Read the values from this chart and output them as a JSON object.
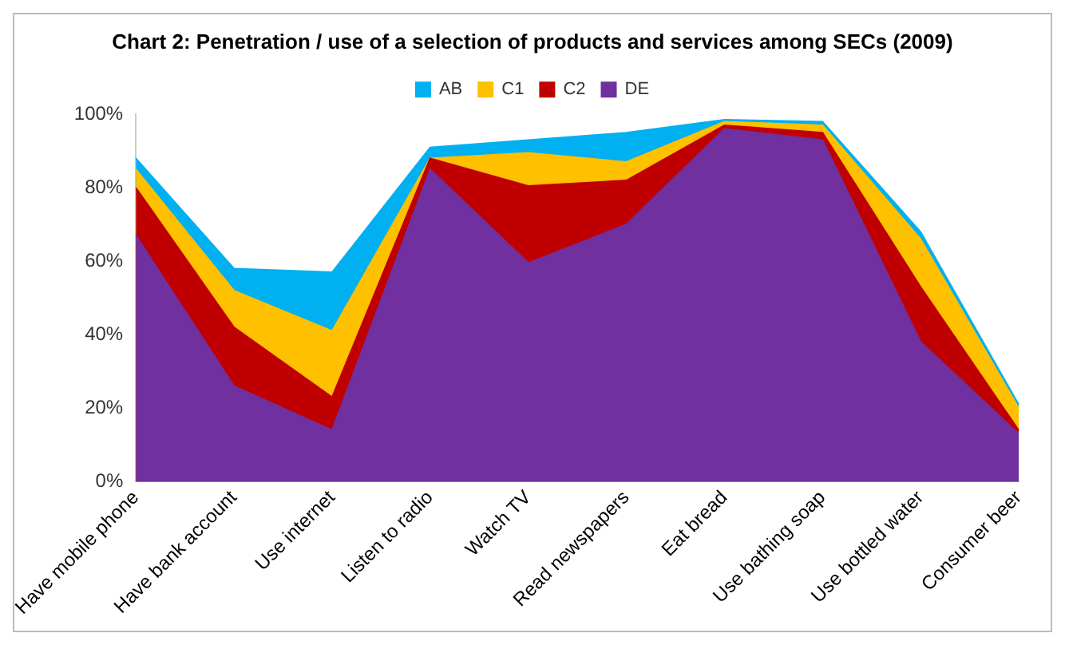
{
  "chart_data": {
    "type": "area",
    "title": "Chart 2: Penetration / use of a selection of products and services among SECs (2009)",
    "categories": [
      "Have mobile phone",
      "Have bank account",
      "Use internet",
      "Listen to radio",
      "Watch TV",
      "Read newspapers",
      "Eat bread",
      "Use bathing soap",
      "Use bottled water",
      "Consumer beer"
    ],
    "series": [
      {
        "name": "AB",
        "color": "#00b0f0",
        "values": [
          88,
          58,
          57,
          91,
          93,
          95,
          98.5,
          98,
          68,
          21
        ]
      },
      {
        "name": "C1",
        "color": "#ffc000",
        "values": [
          85,
          52,
          41,
          88,
          89.5,
          87,
          98,
          97,
          66,
          20
        ]
      },
      {
        "name": "C2",
        "color": "#c00000",
        "values": [
          80,
          42,
          23,
          88,
          80.5,
          82,
          97,
          95,
          53,
          14
        ]
      },
      {
        "name": "DE",
        "color": "#7030a0",
        "values": [
          67,
          26,
          14,
          85,
          59.5,
          70,
          96,
          93,
          38,
          13
        ]
      }
    ],
    "ylim": [
      0,
      100
    ],
    "yticks": [
      {
        "value": 0,
        "label": "0%"
      },
      {
        "value": 20,
        "label": "20%"
      },
      {
        "value": 40,
        "label": "40%"
      },
      {
        "value": 60,
        "label": "60%"
      },
      {
        "value": 80,
        "label": "80%"
      },
      {
        "value": 100,
        "label": "100%"
      }
    ],
    "legend": "top",
    "grid": false
  }
}
